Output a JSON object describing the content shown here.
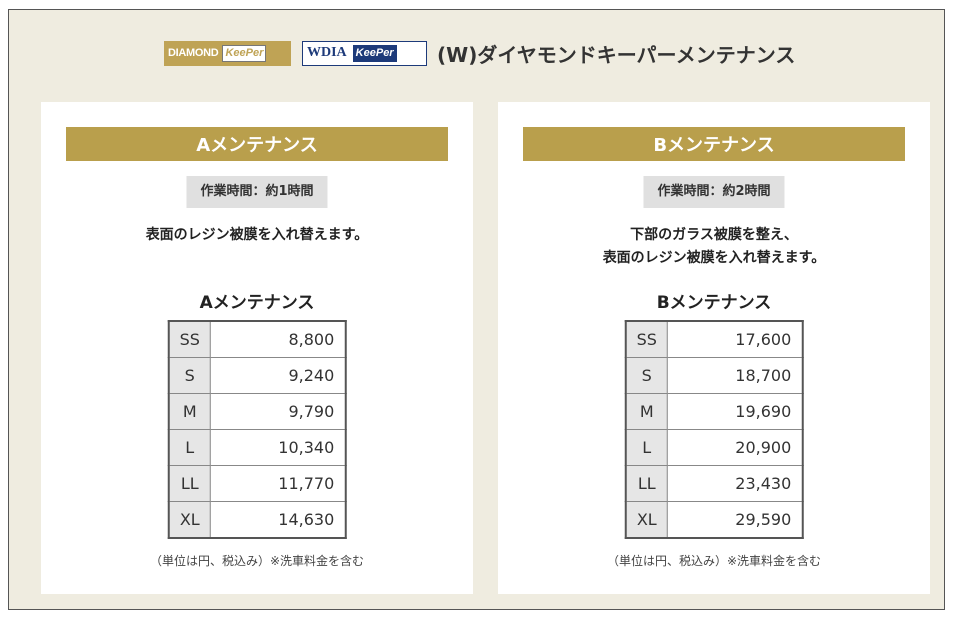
{
  "header": {
    "logo_diamond_text": "DIAMOND",
    "logo_keeper_text": "KeePer",
    "logo_wdia_text": "WDIA",
    "logo_wdia_keeper_text": "KeePer",
    "title": "(W)ダイヤモンドキーパーメンテナンス"
  },
  "panels": [
    {
      "title": "Aメンテナンス",
      "time": "作業時間：約1時間",
      "desc_lines": [
        "表面のレジン被膜を入れ替えます。"
      ],
      "table_heading": "Aメンテナンス",
      "rows": [
        {
          "size": "SS",
          "price": "8,800"
        },
        {
          "size": "S",
          "price": "9,240"
        },
        {
          "size": "M",
          "price": "9,790"
        },
        {
          "size": "L",
          "price": "10,340"
        },
        {
          "size": "LL",
          "price": "11,770"
        },
        {
          "size": "XL",
          "price": "14,630"
        }
      ],
      "note": "（単位は円、税込み）※洗車料金を含む"
    },
    {
      "title": "Bメンテナンス",
      "time": "作業時間：約2時間",
      "desc_lines": [
        "下部のガラス被膜を整え、",
        "表面のレジン被膜を入れ替えます。"
      ],
      "table_heading": "Bメンテナンス",
      "rows": [
        {
          "size": "SS",
          "price": "17,600"
        },
        {
          "size": "S",
          "price": "18,700"
        },
        {
          "size": "M",
          "price": "19,690"
        },
        {
          "size": "L",
          "price": "20,900"
        },
        {
          "size": "LL",
          "price": "23,430"
        },
        {
          "size": "XL",
          "price": "29,590"
        }
      ],
      "note": "（単位は円、税込み）※洗車料金を含む"
    }
  ],
  "colors": {
    "background": "#efece0",
    "gold": "#b99f4c",
    "navy": "#1d3a7a",
    "size_cell": "#e6e6e6",
    "time_badge": "#e0e0e0"
  }
}
